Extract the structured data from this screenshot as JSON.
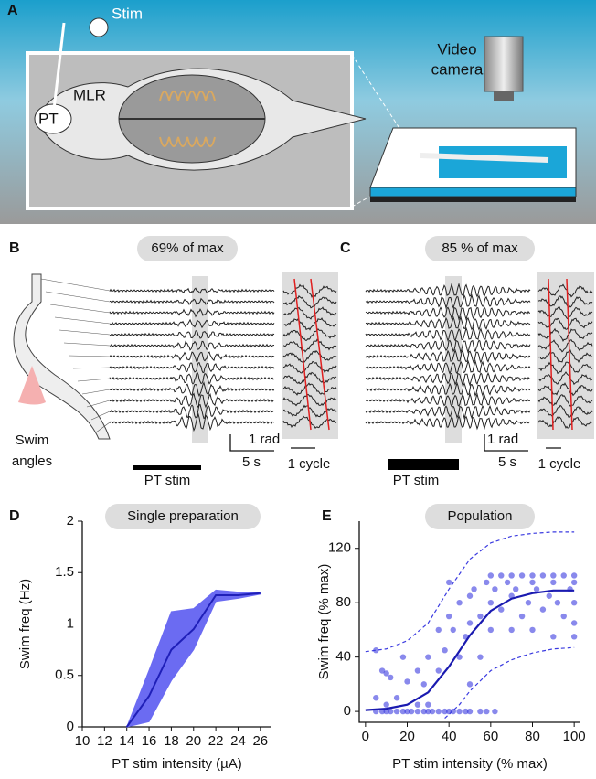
{
  "panel_labels": [
    "A",
    "B",
    "C",
    "D",
    "E"
  ],
  "panel_a": {
    "stim": "Stim",
    "mlr": "MLR",
    "pt": "PT",
    "camera": [
      "Video",
      "camera"
    ]
  },
  "panel_b": {
    "title": "69% of max",
    "swim_angles": [
      "Swim",
      "angles"
    ],
    "scale_rad": "1 rad",
    "scale_time": "5 s",
    "stim": "PT stim",
    "cycle": "1 cycle"
  },
  "panel_c": {
    "title": "85 % of max",
    "scale_rad": "1 rad",
    "scale_time": "5 s",
    "stim": "PT stim",
    "cycle": "1 cycle"
  },
  "chart_data": [
    {
      "type": "band-line",
      "title": "Single preparation",
      "xlabel": "PT stim intensity (µA)",
      "ylabel": "Swim freq (Hz)",
      "x": [
        14,
        16,
        18,
        20,
        22,
        24,
        26
      ],
      "values": [
        0,
        0.3,
        0.75,
        0.95,
        1.28,
        1.28,
        1.3
      ],
      "lower": [
        0,
        0.05,
        0.45,
        0.75,
        1.22,
        1.25,
        1.29
      ],
      "upper": [
        0,
        0.55,
        1.12,
        1.15,
        1.33,
        1.31,
        1.3
      ],
      "color": "#1f1fb8",
      "band_color": "#6b6bf2",
      "xlim": [
        10,
        27
      ],
      "xticks": [
        10,
        12,
        14,
        16,
        18,
        20,
        22,
        24,
        26
      ],
      "ylim": [
        0,
        2
      ],
      "yticks": [
        0,
        0.5,
        1,
        1.5,
        2
      ]
    },
    {
      "type": "scatter",
      "title": "Population",
      "xlabel": "PT stim intensity (% max)",
      "ylabel": "Swim freq (% max)",
      "x": [
        5,
        8,
        10,
        12,
        15,
        18,
        20,
        22,
        25,
        28,
        30,
        32,
        35,
        38,
        40,
        42,
        45,
        48,
        50,
        55,
        58,
        62,
        5,
        8,
        10,
        5,
        10,
        12,
        15,
        18,
        20,
        25,
        25,
        28,
        30,
        30,
        35,
        35,
        38,
        40,
        40,
        42,
        45,
        45,
        48,
        50,
        50,
        50,
        52,
        55,
        55,
        58,
        60,
        60,
        60,
        62,
        65,
        65,
        68,
        70,
        70,
        70,
        72,
        75,
        75,
        78,
        80,
        80,
        80,
        82,
        85,
        85,
        88,
        90,
        90,
        90,
        92,
        95,
        95,
        98,
        100,
        100,
        100,
        100,
        100
      ],
      "values": [
        0,
        0,
        0,
        0,
        0,
        0,
        0,
        0,
        0,
        0,
        0,
        0,
        0,
        0,
        0,
        0,
        0,
        0,
        0,
        0,
        0,
        0,
        45,
        30,
        28,
        10,
        5,
        25,
        10,
        40,
        22,
        5,
        30,
        20,
        40,
        5,
        60,
        30,
        45,
        70,
        95,
        60,
        40,
        80,
        55,
        65,
        85,
        20,
        90,
        70,
        40,
        95,
        100,
        60,
        80,
        90,
        100,
        75,
        95,
        60,
        85,
        100,
        90,
        100,
        70,
        80,
        100,
        95,
        60,
        90,
        100,
        75,
        85,
        100,
        95,
        55,
        80,
        100,
        70,
        90,
        100,
        95,
        80,
        65,
        55
      ],
      "fit": {
        "x": [
          0,
          10,
          20,
          30,
          40,
          50,
          60,
          70,
          80,
          90,
          100
        ],
        "values": [
          1,
          2,
          5,
          14,
          33,
          56,
          74,
          83,
          87,
          89,
          89
        ]
      },
      "upper": {
        "x": [
          0,
          10,
          20,
          30,
          40,
          50,
          60,
          70,
          80,
          90,
          100
        ],
        "values": [
          44,
          46,
          52,
          65,
          90,
          112,
          124,
          129,
          131,
          132,
          132
        ]
      },
      "lower": {
        "x": [
          38,
          45,
          50,
          60,
          70,
          80,
          90,
          100
        ],
        "values": [
          -5,
          5,
          15,
          30,
          38,
          43,
          46,
          47
        ]
      },
      "color": "#3a3ae0",
      "fit_color": "#1a1ab0",
      "xlim": [
        -3,
        103
      ],
      "xticks": [
        0,
        20,
        40,
        60,
        80,
        100
      ],
      "ylim": [
        -8,
        140
      ],
      "yticks": [
        0,
        40,
        80,
        120
      ]
    }
  ]
}
